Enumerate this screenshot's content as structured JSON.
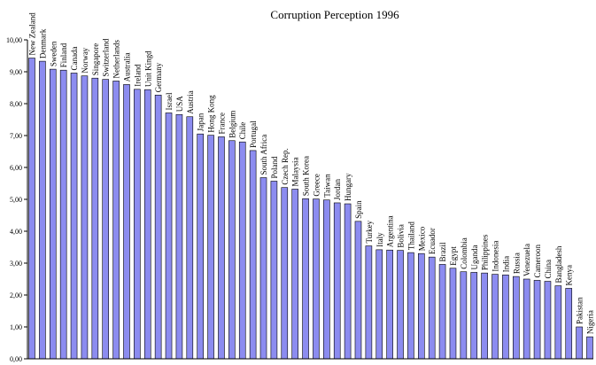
{
  "chart_data": {
    "type": "bar",
    "title": "Corruption Perception 1996",
    "xlabel": "",
    "ylabel": "",
    "ylim": [
      0,
      10
    ],
    "yticks": [
      "0,00",
      "1,00",
      "2,00",
      "3,00",
      "4,00",
      "5,00",
      "6,00",
      "7,00",
      "8,00",
      "9,00",
      "10,00"
    ],
    "grid": false,
    "legend": "none",
    "bar_color": "#8c8cf0",
    "categories": [
      "New Zealand",
      "Denmark",
      "Sweden",
      "Finland",
      "Canada",
      "Norway",
      "Singapore",
      "Switzerland",
      "Netherlands",
      "Australia",
      "Ireland",
      "Unit Kingd",
      "Germany",
      "Israel",
      "USA",
      "Austria",
      "Japan",
      "Hong Kong",
      "France",
      "Belgium",
      "Chile",
      "Portugal",
      "South Africa",
      "Poland",
      "Czech Rep.",
      "Malaysia",
      "South Korea",
      "Greece",
      "Taiwan",
      "Jordan",
      "Hungary",
      "Spain",
      "Turkey",
      "Italy",
      "Argentina",
      "Bolivia",
      "Thailand",
      "Mexico",
      "Ecuador",
      "Brazil",
      "Egypt",
      "Colombia",
      "Uganda",
      "Philippines",
      "Indonesia",
      "India",
      "Russia",
      "Venezuela",
      "Cameroon",
      "China",
      "Bangladesh",
      "Kenya",
      "Pakistan",
      "Nigeria"
    ],
    "values": [
      9.43,
      9.33,
      9.08,
      9.05,
      8.96,
      8.87,
      8.8,
      8.76,
      8.71,
      8.6,
      8.45,
      8.44,
      8.27,
      7.71,
      7.66,
      7.59,
      7.05,
      7.01,
      6.96,
      6.84,
      6.8,
      6.53,
      5.68,
      5.57,
      5.37,
      5.32,
      5.02,
      5.01,
      4.98,
      4.89,
      4.86,
      4.31,
      3.54,
      3.42,
      3.41,
      3.4,
      3.33,
      3.3,
      3.19,
      2.96,
      2.84,
      2.73,
      2.71,
      2.69,
      2.65,
      2.63,
      2.58,
      2.5,
      2.46,
      2.43,
      2.29,
      2.21,
      1.0,
      0.69
    ]
  }
}
